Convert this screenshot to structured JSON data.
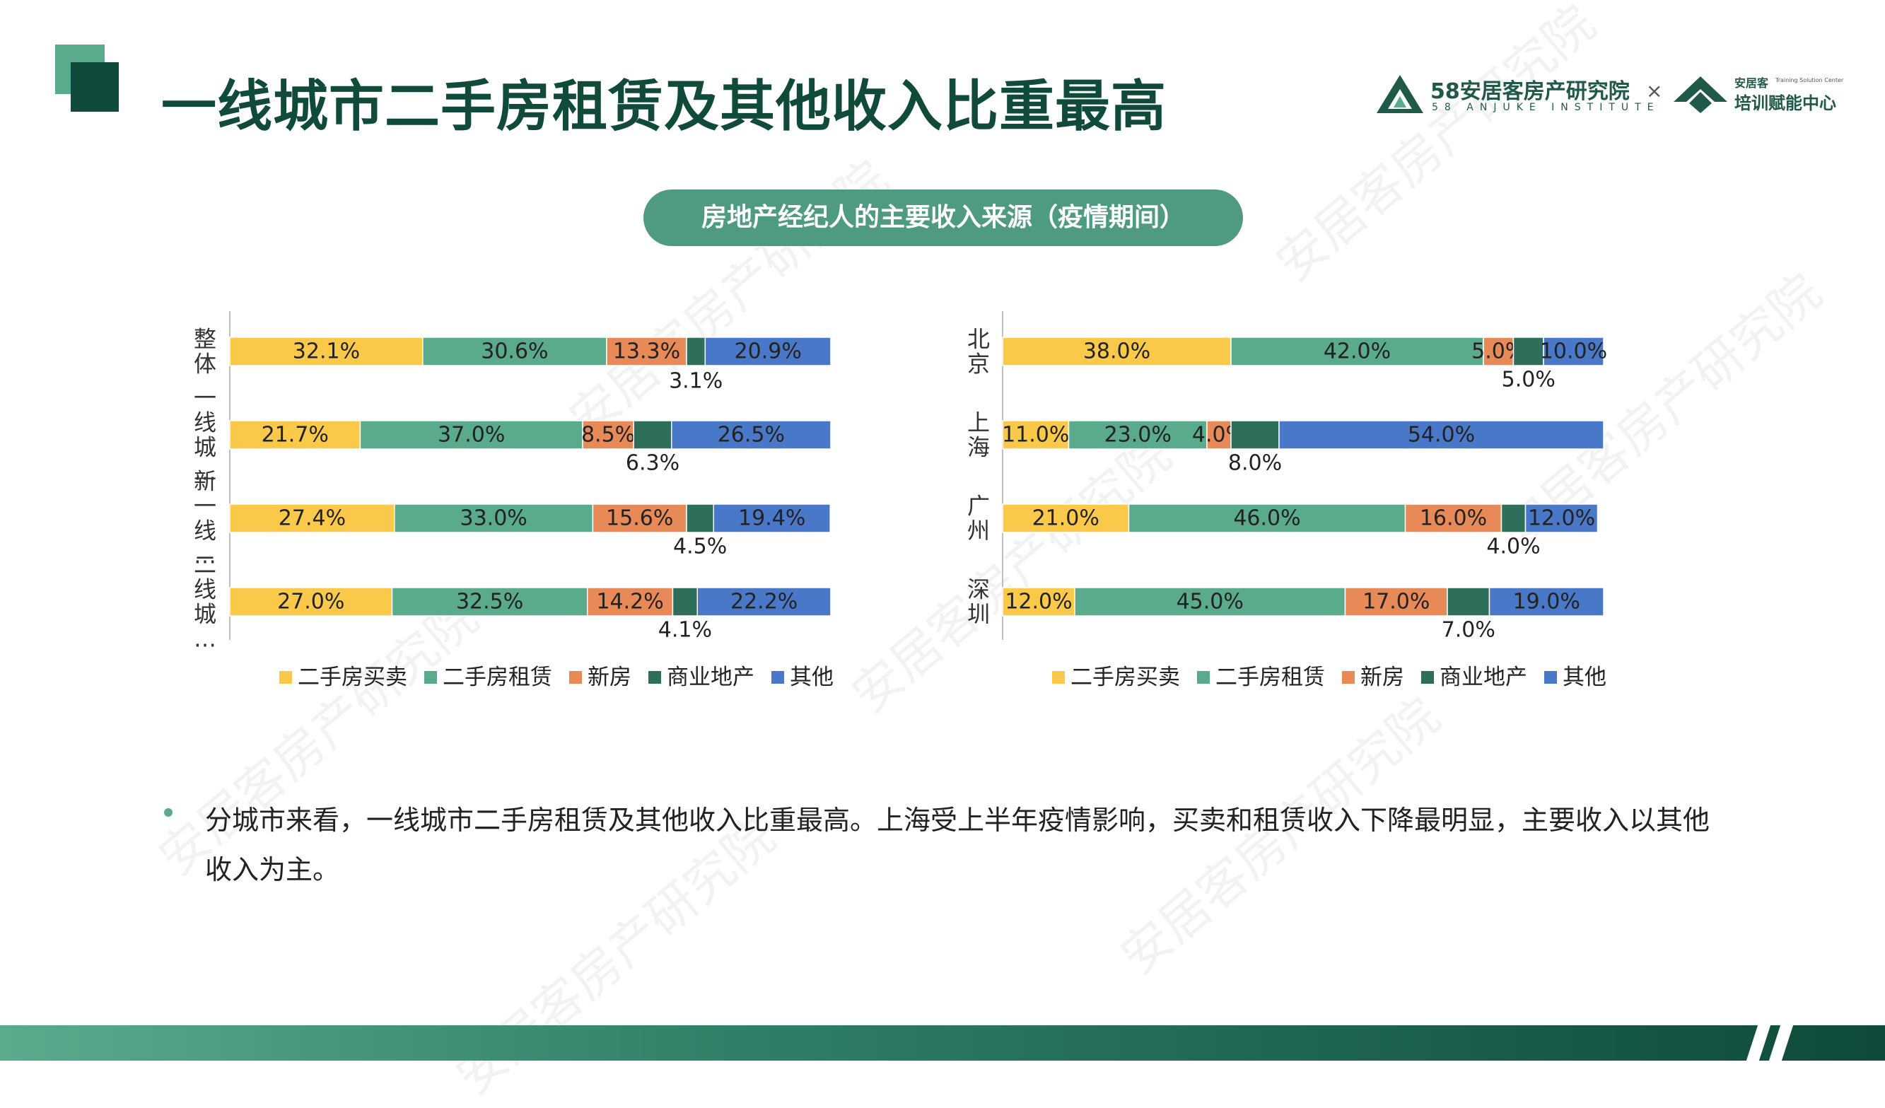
{
  "header": {
    "title": "一线城市二手房租赁及其他收入比重最高",
    "brand_left_main": "58安居客房产研究院",
    "brand_left_sub": "58 ANJUKE INSTITUTE",
    "brand_x": "×",
    "brand_right_top": "安居客",
    "brand_right_top_sub": "Training Solution Center",
    "brand_right_main": "培训赋能中心"
  },
  "subtitle_pill": "房地产经纪人的主要收入来源（疫情期间）",
  "watermark": "安居客房产研究院",
  "colors": {
    "二手房买卖": "#fbc94a",
    "二手房租赁": "#5aaa8c",
    "新房": "#e88a58",
    "商业地产": "#2e6e5b",
    "其他": "#4a78c8",
    "title": "#0f4a3a"
  },
  "chart_data": [
    {
      "type": "bar",
      "orientation": "horizontal",
      "stacked": true,
      "categories": [
        "整体",
        "一线城...",
        "新一线...",
        "二线城..."
      ],
      "series": [
        {
          "name": "二手房买卖",
          "values": [
            32.1,
            21.7,
            27.4,
            27.0
          ]
        },
        {
          "name": "二手房租赁",
          "values": [
            30.6,
            37.0,
            33.0,
            32.5
          ]
        },
        {
          "name": "新房",
          "values": [
            13.3,
            8.5,
            15.6,
            14.2
          ]
        },
        {
          "name": "商业地产",
          "values": [
            3.1,
            6.3,
            4.5,
            4.1
          ]
        },
        {
          "name": "其他",
          "values": [
            20.9,
            26.5,
            19.4,
            22.2
          ]
        }
      ],
      "labels": [
        [
          "32.1%",
          "30.6%",
          "13.3%",
          "3.1%",
          "20.9%"
        ],
        [
          "21.7%",
          "37.0%",
          "8.5%",
          "6.3%",
          "26.5%"
        ],
        [
          "27.4%",
          "33.0%",
          "15.6%",
          "4.5%",
          "19.4%"
        ],
        [
          "27.0%",
          "32.5%",
          "14.2%",
          "4.1%",
          "22.2%"
        ]
      ],
      "legend": [
        "二手房买卖",
        "二手房租赁",
        "新房",
        "商业地产",
        "其他"
      ],
      "legend_position": "bottom",
      "xlim": [
        0,
        100
      ],
      "grid": false
    },
    {
      "type": "bar",
      "orientation": "horizontal",
      "stacked": true,
      "categories": [
        "北京",
        "上海",
        "广州",
        "深圳"
      ],
      "series": [
        {
          "name": "二手房买卖",
          "values": [
            38.0,
            11.0,
            21.0,
            12.0
          ]
        },
        {
          "name": "二手房租赁",
          "values": [
            42.0,
            23.0,
            46.0,
            45.0
          ]
        },
        {
          "name": "新房",
          "values": [
            5.0,
            4.0,
            16.0,
            17.0
          ]
        },
        {
          "name": "商业地产",
          "values": [
            5.0,
            8.0,
            4.0,
            7.0
          ]
        },
        {
          "name": "其他",
          "values": [
            10.0,
            54.0,
            12.0,
            19.0
          ]
        }
      ],
      "labels": [
        [
          "38.0%",
          "42.0%",
          "5.0%",
          "5.0%",
          "10.0%"
        ],
        [
          "11.0%",
          "23.0%",
          "4.0%",
          "8.0%",
          "54.0%"
        ],
        [
          "21.0%",
          "46.0%",
          "16.0%",
          "4.0%",
          "12.0%"
        ],
        [
          "12.0%",
          "45.0%",
          "17.0%",
          "7.0%",
          "19.0%"
        ]
      ],
      "legend": [
        "二手房买卖",
        "二手房租赁",
        "新房",
        "商业地产",
        "其他"
      ],
      "legend_position": "bottom",
      "xlim": [
        0,
        100
      ],
      "grid": false
    }
  ],
  "body_text": "分城市来看，一线城市二手房租赁及其他收入比重最高。上海受上半年疫情影响，买卖和租赁收入下降最明显，主要收入以其他收入为主。"
}
